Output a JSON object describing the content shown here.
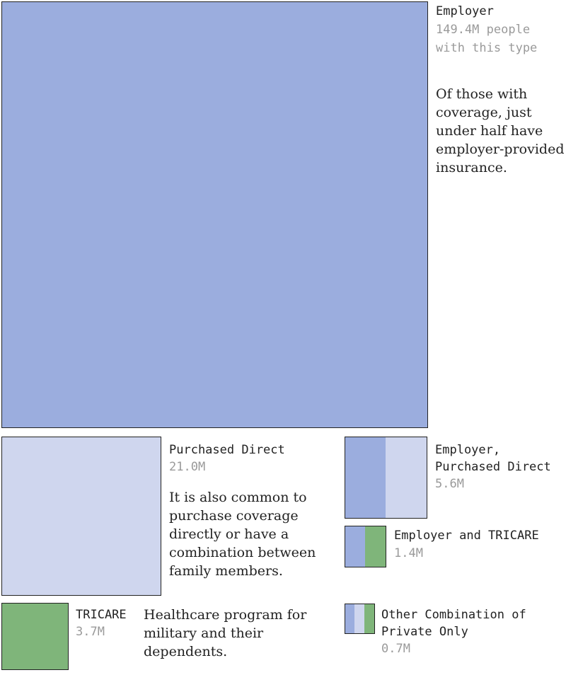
{
  "colors": {
    "employer": "#9badde",
    "purchased_direct": "#cfd6ee",
    "tricare": "#7fb57a",
    "border": "#222222",
    "value_text": "#9a9a9a"
  },
  "chart_data": {
    "type": "treemap",
    "unit": "million people",
    "items": [
      {
        "key": "employer",
        "name": "Employer",
        "value": 149.4,
        "value_label": "149.4M people with this type",
        "note": "Of those with coverage, just under half have employer-provided insurance.",
        "components": [
          "employer"
        ]
      },
      {
        "key": "purchased",
        "name": "Purchased Direct",
        "value": 21.0,
        "value_label": "21.0M",
        "note": "It is also common to purchase coverage directly or have a combination between family members.",
        "components": [
          "purchased_direct"
        ]
      },
      {
        "key": "emp_purch",
        "name": "Employer, Purchased Direct",
        "value": 5.6,
        "value_label": "5.6M",
        "components": [
          "employer",
          "purchased_direct"
        ]
      },
      {
        "key": "emp_tricare",
        "name": "Employer and TRICARE",
        "value": 1.4,
        "value_label": "1.4M",
        "components": [
          "employer",
          "tricare"
        ]
      },
      {
        "key": "tricare",
        "name": "TRICARE",
        "value": 3.7,
        "value_label": "3.7M",
        "note": "Healthcare program for military and their dependents.",
        "components": [
          "tricare"
        ]
      },
      {
        "key": "other",
        "name": "Other Combination of Private Only",
        "value": 0.7,
        "value_label": "0.7M",
        "components": [
          "employer",
          "purchased_direct",
          "tricare"
        ]
      }
    ]
  },
  "labels": {
    "employer_name": "Employer",
    "employer_value_1": "149.4M people",
    "employer_value_2": "with this type",
    "employer_note": "Of those with coverage, just under half have employer-provided insurance.",
    "purchased_name": "Purchased Direct",
    "purchased_value": "21.0M",
    "purchased_note": "It is also common to purchase coverage directly or have a combination between family members.",
    "emp_purch_name_1": "Employer,",
    "emp_purch_name_2": "Purchased Direct",
    "emp_purch_value": "5.6M",
    "emp_tricare_name": "Employer and TRICARE",
    "emp_tricare_value": "1.4M",
    "tricare_name": "TRICARE",
    "tricare_value": "3.7M",
    "tricare_note": "Healthcare program for military and their dependents.",
    "other_name_1": "Other Combination of",
    "other_name_2": "Private Only",
    "other_value": "0.7M"
  }
}
